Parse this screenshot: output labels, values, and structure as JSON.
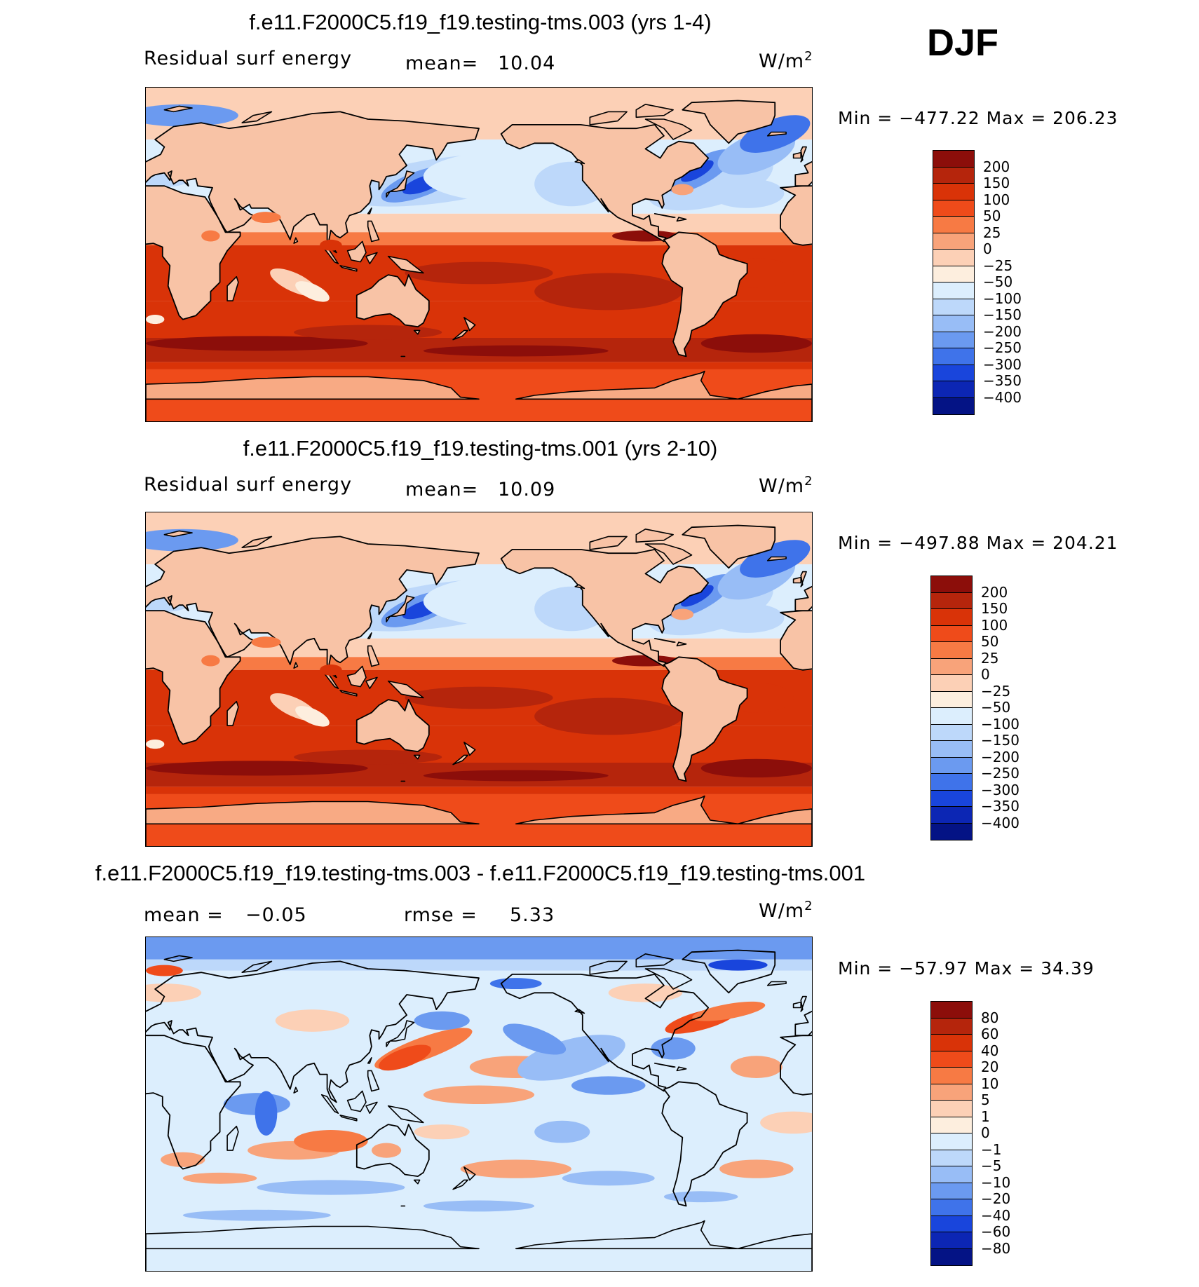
{
  "season": "DJF",
  "panels": [
    {
      "title": "f.e11.F2000C5.f19_f19.testing-tms.003 (yrs 1-4)",
      "left_label": "Residual surf energy",
      "stat1_label": "mean=",
      "stat1_value": "10.04",
      "stat2_label": "",
      "stat2_value": "",
      "units_base": "W/m",
      "units_sup": "2",
      "minmax": "Min = −477.22 Max = 206.23",
      "field_stats": {
        "min": -477.22,
        "max": 206.23,
        "mean": 10.04
      },
      "colorbar_labels": [
        "200",
        "150",
        "100",
        "50",
        "25",
        "0",
        "−25",
        "−50",
        "−100",
        "−150",
        "−200",
        "−250",
        "−300",
        "−350",
        "−400"
      ],
      "colorbar_colors": [
        "#8c0e0a",
        "#b5250c",
        "#d93308",
        "#ef4b1a",
        "#f77a44",
        "#f8a37a",
        "#fcd0b6",
        "#fdeede",
        "#dceefd",
        "#bdd8fa",
        "#98bdf6",
        "#6b9af0",
        "#3f73ea",
        "#1945dc",
        "#0c26b4",
        "#041385"
      ],
      "panel_type": "model"
    },
    {
      "title": "f.e11.F2000C5.f19_f19.testing-tms.001 (yrs 2-10)",
      "left_label": "Residual surf energy",
      "stat1_label": "mean=",
      "stat1_value": "10.09",
      "stat2_label": "",
      "stat2_value": "",
      "units_base": "W/m",
      "units_sup": "2",
      "minmax": "Min = −497.88 Max = 204.21",
      "field_stats": {
        "min": -497.88,
        "max": 204.21,
        "mean": 10.09
      },
      "colorbar_labels": [
        "200",
        "150",
        "100",
        "50",
        "25",
        "0",
        "−25",
        "−50",
        "−100",
        "−150",
        "−200",
        "−250",
        "−300",
        "−350",
        "−400"
      ],
      "colorbar_colors": [
        "#8c0e0a",
        "#b5250c",
        "#d93308",
        "#ef4b1a",
        "#f77a44",
        "#f8a37a",
        "#fcd0b6",
        "#fdeede",
        "#dceefd",
        "#bdd8fa",
        "#98bdf6",
        "#6b9af0",
        "#3f73ea",
        "#1945dc",
        "#0c26b4",
        "#041385"
      ],
      "panel_type": "model"
    },
    {
      "title": "f.e11.F2000C5.f19_f19.testing-tms.003 - f.e11.F2000C5.f19_f19.testing-tms.001",
      "left_label": "",
      "stat1_label": "mean =",
      "stat1_value": "−0.05",
      "stat2_label": "rmse =",
      "stat2_value": "5.33",
      "units_base": "W/m",
      "units_sup": "2",
      "minmax": "Min = −57.97 Max =  34.39",
      "field_stats": {
        "min": -57.97,
        "max": 34.39,
        "mean": -0.05,
        "rmse": 5.33
      },
      "colorbar_labels": [
        "80",
        "60",
        "40",
        "20",
        "10",
        "5",
        "1",
        "0",
        "−1",
        "−5",
        "−10",
        "−20",
        "−40",
        "−60",
        "−80"
      ],
      "colorbar_colors": [
        "#8c0e0a",
        "#b5250c",
        "#d93308",
        "#ef4b1a",
        "#f77a44",
        "#f8a37a",
        "#fcd0b6",
        "#fdeede",
        "#dceefd",
        "#bdd8fa",
        "#98bdf6",
        "#6b9af0",
        "#3f73ea",
        "#1945dc",
        "#0c26b4",
        "#041385"
      ],
      "panel_type": "difference"
    }
  ],
  "colors": {
    "land": "#f8c3a6",
    "antarctica": "#f8aa84",
    "coastline": "#000000"
  }
}
